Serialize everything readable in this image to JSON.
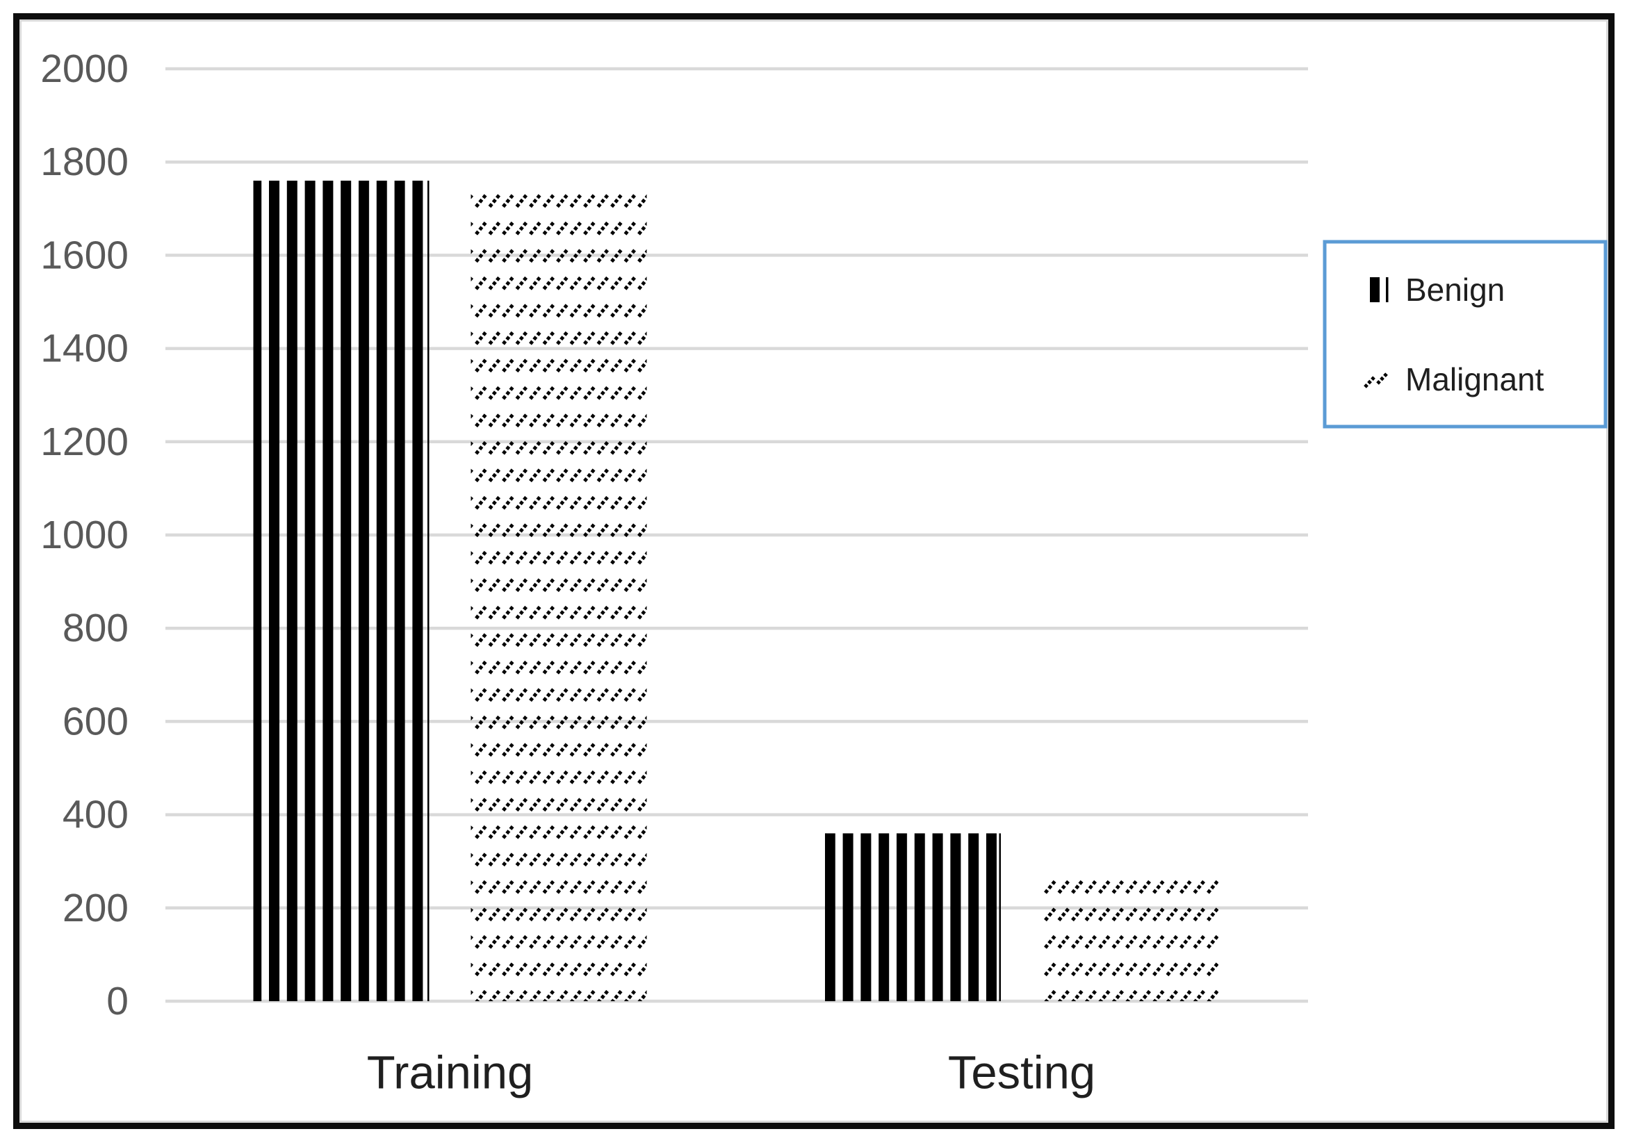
{
  "chart_data": {
    "type": "bar",
    "categories": [
      "Training",
      "Testing"
    ],
    "series": [
      {
        "name": "Benign",
        "pattern": "vertical-stripes",
        "values": [
          1760,
          360
        ]
      },
      {
        "name": "Malignant",
        "pattern": "diagonal-hatch",
        "values": [
          1760,
          280
        ]
      }
    ],
    "title": "",
    "xlabel": "",
    "ylabel": "",
    "ylim": [
      0,
      2000
    ],
    "ytick_step": 200,
    "ytick_labels": [
      "0",
      "200",
      "400",
      "600",
      "800",
      "1000",
      "1200",
      "1400",
      "1600",
      "1800",
      "2000"
    ],
    "grid": true,
    "legend_position": "right",
    "legend_entries": [
      "Benign",
      "Malignant"
    ],
    "colors": {
      "bar_fill": "#000000",
      "gridline": "#d9d9d9",
      "tick_label": "#595959",
      "category_label": "#1f1f1f",
      "legend_border": "#5b9bd5",
      "legend_text": "#1f1f1f",
      "frame": "#0d0d0d",
      "background": "#ffffff"
    }
  }
}
